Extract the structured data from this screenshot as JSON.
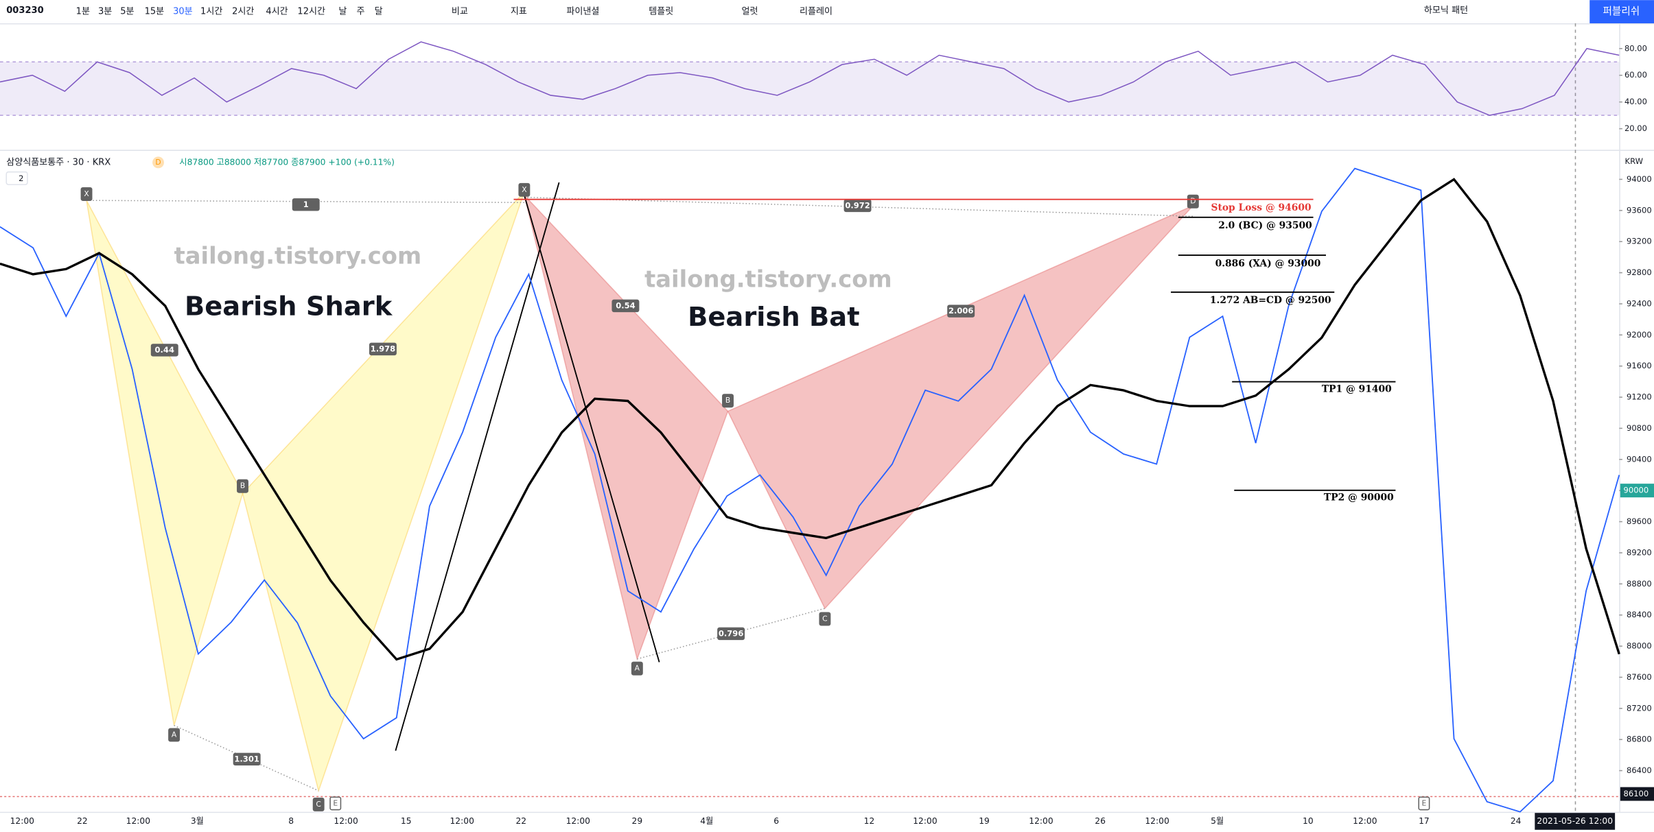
{
  "toolbar": {
    "symbol": "003230",
    "intervals": [
      "1분",
      "3분",
      "5분",
      "15분",
      "30분",
      "1시간",
      "2시간",
      "4시간",
      "12시간",
      "날",
      "주",
      "달"
    ],
    "buttons": [
      "비교",
      "지표",
      "파이낸셜",
      "템플릿",
      "얼럿",
      "리플레이"
    ],
    "harmonic": "하모닉 패턴",
    "publish": "퍼블리쉬"
  },
  "legend": {
    "name": "삼양식품보통주 · 30 · KRX",
    "badge": "D",
    "ohlc": "시87800 고88000 저87700 종87900 +100 (+0.11%)",
    "count": "2"
  },
  "currency": "KRW",
  "rsi": {
    "type": "line",
    "color": "#7e57c2",
    "values": [
      55,
      60,
      48,
      70,
      62,
      45,
      58,
      40,
      52,
      65,
      60,
      50,
      72,
      85,
      78,
      68,
      55,
      45,
      42,
      50,
      60,
      62,
      58,
      50,
      45,
      55,
      68,
      72,
      60,
      75,
      70,
      65,
      50,
      40,
      45,
      55,
      70,
      78,
      60,
      65,
      70,
      55,
      60,
      75,
      68,
      40,
      30,
      35,
      45,
      80,
      75
    ],
    "ylim": [
      4.2,
      98.9
    ],
    "band": [
      30,
      70
    ],
    "yticks": [
      {
        "value": 80,
        "label": "80.00"
      },
      {
        "value": 60,
        "label": "60.00"
      },
      {
        "value": 40,
        "label": "40.00"
      },
      {
        "value": 20,
        "label": "20.00"
      }
    ]
  },
  "chart_data": {
    "type": "line",
    "x_labels": [
      "12:00",
      "22",
      "12:00",
      "3월",
      "8",
      "12:00",
      "15",
      "12:00",
      "22",
      "12:00",
      "29",
      "4월",
      "6",
      "12",
      "12:00",
      "19",
      "12:00",
      "26",
      "12:00",
      "5월",
      "10",
      "12:00",
      "17",
      "24"
    ],
    "series": [
      {
        "color": "#2962ff",
        "values": [
          93390,
          93120,
          92240,
          93050,
          91560,
          89520,
          87900,
          88310,
          88850,
          88300,
          87360,
          86810,
          87080,
          89800,
          90750,
          91970,
          92780,
          91420,
          90470,
          88710,
          88440,
          89250,
          89930,
          90200,
          89660,
          88910,
          89800,
          90340,
          91290,
          91150,
          91560,
          92510,
          91420,
          90750,
          90470,
          90340,
          91970,
          92240,
          90610,
          92380,
          93590,
          94140,
          94000,
          93860,
          86810,
          86000,
          85870,
          86270,
          88710,
          90200
        ]
      },
      {
        "color": "#000000",
        "values": [
          92915,
          92780,
          92847,
          93051,
          92780,
          92373,
          91559,
          90881,
          90203,
          89525,
          88846,
          88304,
          87830,
          87966,
          88440,
          89254,
          90068,
          90746,
          91180,
          91152,
          90746,
          90203,
          89661,
          89525,
          89457,
          89390,
          89525,
          89661,
          89796,
          89932,
          90068,
          90610,
          91085,
          91356,
          91288,
          91152,
          91085,
          91085,
          91220,
          91559,
          91966,
          92644,
          93186,
          93729,
          94000,
          93458,
          92508,
          91152,
          89254,
          87898
        ]
      }
    ],
    "ylim": [
      85870,
      94366
    ],
    "yticks": [
      94000,
      93600,
      93200,
      92800,
      92400,
      92000,
      91600,
      91200,
      90800,
      90400,
      90000,
      89600,
      89200,
      88800,
      88400,
      88000,
      87600,
      87200,
      86800,
      86400
    ],
    "last_price": 90000,
    "crosshair_price": 86100,
    "crosshair_time": "2021-05-26  12:00"
  },
  "annotations": {
    "watermark": "tailong.tistory.com",
    "shark": "Bearish Shark",
    "bat": "Bearish Bat",
    "ratios": [
      "1",
      "0.44",
      "1.978",
      "1.301",
      "0.972",
      "0.54",
      "2.006",
      "0.796"
    ],
    "points": [
      "X",
      "A",
      "B",
      "C",
      "E",
      "X",
      "A",
      "B",
      "C",
      "D",
      "E"
    ],
    "levels": [
      "Stop Loss @ 94600",
      "2.0 (BC) @ 93500",
      "0.886 (XA) @ 93000",
      "1.272 AB=CD @ 92500",
      "TP1 @ 91400",
      "TP2 @ 90000"
    ]
  }
}
